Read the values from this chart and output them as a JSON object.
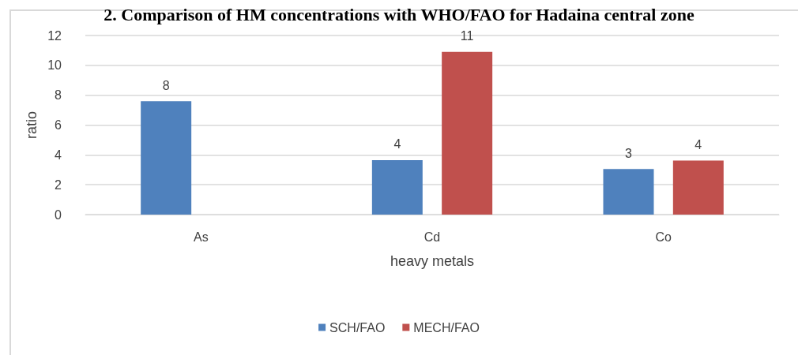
{
  "chart_data": {
    "type": "bar",
    "title": "2. Comparison of HM concentrations with WHO/FAO for Hadaina central zone",
    "xlabel": "heavy metals",
    "ylabel": "ratio",
    "categories": [
      "As",
      "Cd",
      "Co"
    ],
    "series": [
      {
        "name": "SCH/FAO",
        "color": "#4f81bd",
        "values": [
          7.6,
          3.65,
          3.05
        ],
        "value_labels": [
          "8",
          "4",
          "3"
        ]
      },
      {
        "name": "MECH/FAO",
        "color": "#c0504d",
        "values": [
          null,
          10.9,
          3.62
        ],
        "value_labels": [
          null,
          "11",
          "4"
        ]
      }
    ],
    "ylim": [
      0,
      12
    ],
    "yticks": [
      0,
      2,
      4,
      6,
      8,
      10,
      12
    ],
    "grid": "y",
    "legend": "bottom"
  }
}
